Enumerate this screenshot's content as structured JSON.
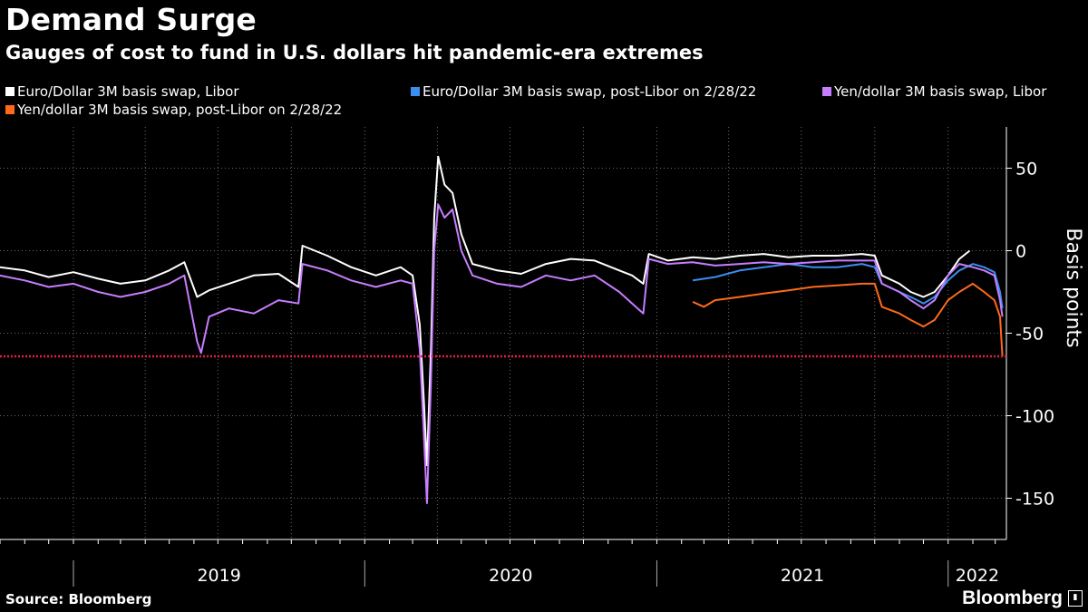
{
  "header": {
    "title": "Demand Surge",
    "subtitle": "Gauges of cost to fund in U.S. dollars hit pandemic-era extremes"
  },
  "footer": {
    "source": "Source: Bloomberg",
    "brand": "Bloomberg"
  },
  "colors": {
    "background": "#000000",
    "reference_line": "#e0204a"
  },
  "chart_data": {
    "type": "line",
    "title": "Demand Surge",
    "subtitle": "Gauges of cost to fund in U.S. dollars hit pandemic-era extremes",
    "ylabel": "Basis points",
    "ylim": [
      -175,
      75
    ],
    "yticks": [
      50,
      0,
      -50,
      -100,
      -150
    ],
    "xlim": [
      "2018-10-01",
      "2022-03-15"
    ],
    "year_labels": [
      "2019",
      "2020",
      "2021",
      "2022"
    ],
    "grid": true,
    "legend_position": "top",
    "reference_line": {
      "y": -64,
      "style": "dotted"
    },
    "series": [
      {
        "name": "Euro/Dollar 3M basis swap, Libor",
        "color": "#ffffff",
        "points": [
          [
            "2018-10-01",
            -10
          ],
          [
            "2018-11-01",
            -12
          ],
          [
            "2018-12-01",
            -16
          ],
          [
            "2019-01-01",
            -13
          ],
          [
            "2019-02-01",
            -17
          ],
          [
            "2019-03-01",
            -20
          ],
          [
            "2019-04-01",
            -18
          ],
          [
            "2019-05-01",
            -12
          ],
          [
            "2019-05-20",
            -7
          ],
          [
            "2019-06-05",
            -28
          ],
          [
            "2019-06-20",
            -24
          ],
          [
            "2019-07-15",
            -20
          ],
          [
            "2019-08-15",
            -15
          ],
          [
            "2019-09-15",
            -14
          ],
          [
            "2019-10-10",
            -22
          ],
          [
            "2019-10-15",
            3
          ],
          [
            "2019-11-15",
            -3
          ],
          [
            "2019-12-15",
            -10
          ],
          [
            "2020-01-15",
            -15
          ],
          [
            "2020-02-15",
            -10
          ],
          [
            "2020-03-01",
            -15
          ],
          [
            "2020-03-10",
            -45
          ],
          [
            "2020-03-15",
            -90
          ],
          [
            "2020-03-19",
            -130
          ],
          [
            "2020-03-24",
            -60
          ],
          [
            "2020-03-28",
            20
          ],
          [
            "2020-04-02",
            57
          ],
          [
            "2020-04-10",
            40
          ],
          [
            "2020-04-20",
            35
          ],
          [
            "2020-05-01",
            10
          ],
          [
            "2020-05-15",
            -8
          ],
          [
            "2020-06-15",
            -12
          ],
          [
            "2020-07-15",
            -14
          ],
          [
            "2020-08-15",
            -8
          ],
          [
            "2020-09-15",
            -5
          ],
          [
            "2020-10-15",
            -6
          ],
          [
            "2020-11-15",
            -12
          ],
          [
            "2020-12-01",
            -15
          ],
          [
            "2020-12-15",
            -20
          ],
          [
            "2020-12-22",
            -2
          ],
          [
            "2021-01-15",
            -6
          ],
          [
            "2021-02-15",
            -4
          ],
          [
            "2021-03-15",
            -5
          ],
          [
            "2021-04-15",
            -3
          ],
          [
            "2021-05-15",
            -2
          ],
          [
            "2021-06-15",
            -4
          ],
          [
            "2021-07-15",
            -3
          ],
          [
            "2021-08-15",
            -3
          ],
          [
            "2021-09-15",
            -2
          ],
          [
            "2021-10-01",
            -3
          ],
          [
            "2021-10-10",
            -15
          ],
          [
            "2021-11-01",
            -20
          ],
          [
            "2021-11-15",
            -25
          ],
          [
            "2021-12-01",
            -28
          ],
          [
            "2021-12-15",
            -25
          ],
          [
            "2022-01-01",
            -15
          ],
          [
            "2022-01-15",
            -5
          ],
          [
            "2022-01-28",
            0
          ]
        ]
      },
      {
        "name": "Euro/Dollar 3M basis swap, post-Libor on 2/28/22",
        "color": "#3b8ef0",
        "points": [
          [
            "2021-02-15",
            -18
          ],
          [
            "2021-03-15",
            -16
          ],
          [
            "2021-04-15",
            -12
          ],
          [
            "2021-05-15",
            -10
          ],
          [
            "2021-06-15",
            -8
          ],
          [
            "2021-07-15",
            -10
          ],
          [
            "2021-08-15",
            -10
          ],
          [
            "2021-09-15",
            -8
          ],
          [
            "2021-10-01",
            -10
          ],
          [
            "2021-10-10",
            -20
          ],
          [
            "2021-11-01",
            -25
          ],
          [
            "2021-11-15",
            -28
          ],
          [
            "2021-12-01",
            -32
          ],
          [
            "2021-12-15",
            -28
          ],
          [
            "2022-01-01",
            -18
          ],
          [
            "2022-01-15",
            -12
          ],
          [
            "2022-02-01",
            -8
          ],
          [
            "2022-02-15",
            -10
          ],
          [
            "2022-02-28",
            -13
          ],
          [
            "2022-03-07",
            -25
          ],
          [
            "2022-03-10",
            -35
          ]
        ]
      },
      {
        "name": "Yen/dollar 3M basis swap, Libor",
        "color": "#c77dff",
        "points": [
          [
            "2018-10-01",
            -15
          ],
          [
            "2018-11-01",
            -18
          ],
          [
            "2018-12-01",
            -22
          ],
          [
            "2019-01-01",
            -20
          ],
          [
            "2019-02-01",
            -25
          ],
          [
            "2019-03-01",
            -28
          ],
          [
            "2019-04-01",
            -25
          ],
          [
            "2019-05-01",
            -20
          ],
          [
            "2019-05-20",
            -15
          ],
          [
            "2019-06-05",
            -55
          ],
          [
            "2019-06-10",
            -62
          ],
          [
            "2019-06-20",
            -40
          ],
          [
            "2019-07-15",
            -35
          ],
          [
            "2019-08-15",
            -38
          ],
          [
            "2019-09-15",
            -30
          ],
          [
            "2019-10-10",
            -32
          ],
          [
            "2019-10-15",
            -8
          ],
          [
            "2019-11-15",
            -12
          ],
          [
            "2019-12-15",
            -18
          ],
          [
            "2020-01-15",
            -22
          ],
          [
            "2020-02-15",
            -18
          ],
          [
            "2020-03-01",
            -20
          ],
          [
            "2020-03-10",
            -60
          ],
          [
            "2020-03-15",
            -110
          ],
          [
            "2020-03-19",
            -153
          ],
          [
            "2020-03-24",
            -80
          ],
          [
            "2020-03-28",
            0
          ],
          [
            "2020-04-02",
            28
          ],
          [
            "2020-04-10",
            20
          ],
          [
            "2020-04-20",
            25
          ],
          [
            "2020-05-01",
            0
          ],
          [
            "2020-05-15",
            -15
          ],
          [
            "2020-06-15",
            -20
          ],
          [
            "2020-07-15",
            -22
          ],
          [
            "2020-08-15",
            -15
          ],
          [
            "2020-09-15",
            -18
          ],
          [
            "2020-10-15",
            -15
          ],
          [
            "2020-11-15",
            -25
          ],
          [
            "2020-12-01",
            -32
          ],
          [
            "2020-12-15",
            -38
          ],
          [
            "2020-12-22",
            -5
          ],
          [
            "2021-01-15",
            -8
          ],
          [
            "2021-02-15",
            -7
          ],
          [
            "2021-03-15",
            -9
          ],
          [
            "2021-04-15",
            -8
          ],
          [
            "2021-05-15",
            -7
          ],
          [
            "2021-06-15",
            -8
          ],
          [
            "2021-07-15",
            -7
          ],
          [
            "2021-08-15",
            -6
          ],
          [
            "2021-09-15",
            -6
          ],
          [
            "2021-10-01",
            -6
          ],
          [
            "2021-10-10",
            -20
          ],
          [
            "2021-11-01",
            -25
          ],
          [
            "2021-11-15",
            -30
          ],
          [
            "2021-12-01",
            -35
          ],
          [
            "2021-12-15",
            -30
          ],
          [
            "2022-01-01",
            -15
          ],
          [
            "2022-01-15",
            -8
          ],
          [
            "2022-02-01",
            -10
          ],
          [
            "2022-02-15",
            -12
          ],
          [
            "2022-02-28",
            -15
          ],
          [
            "2022-03-07",
            -30
          ],
          [
            "2022-03-10",
            -40
          ]
        ]
      },
      {
        "name": "Yen/dollar 3M basis swap, post-Libor on 2/28/22",
        "color": "#ff6a1a",
        "points": [
          [
            "2021-02-15",
            -31
          ],
          [
            "2021-03-01",
            -34
          ],
          [
            "2021-03-15",
            -30
          ],
          [
            "2021-04-15",
            -28
          ],
          [
            "2021-05-15",
            -26
          ],
          [
            "2021-06-15",
            -24
          ],
          [
            "2021-07-15",
            -22
          ],
          [
            "2021-08-15",
            -21
          ],
          [
            "2021-09-15",
            -20
          ],
          [
            "2021-10-01",
            -20
          ],
          [
            "2021-10-10",
            -34
          ],
          [
            "2021-11-01",
            -38
          ],
          [
            "2021-11-15",
            -42
          ],
          [
            "2021-12-01",
            -46
          ],
          [
            "2021-12-15",
            -42
          ],
          [
            "2022-01-01",
            -30
          ],
          [
            "2022-01-15",
            -25
          ],
          [
            "2022-02-01",
            -20
          ],
          [
            "2022-02-15",
            -25
          ],
          [
            "2022-02-28",
            -30
          ],
          [
            "2022-03-07",
            -40
          ],
          [
            "2022-03-10",
            -64
          ]
        ]
      }
    ]
  }
}
